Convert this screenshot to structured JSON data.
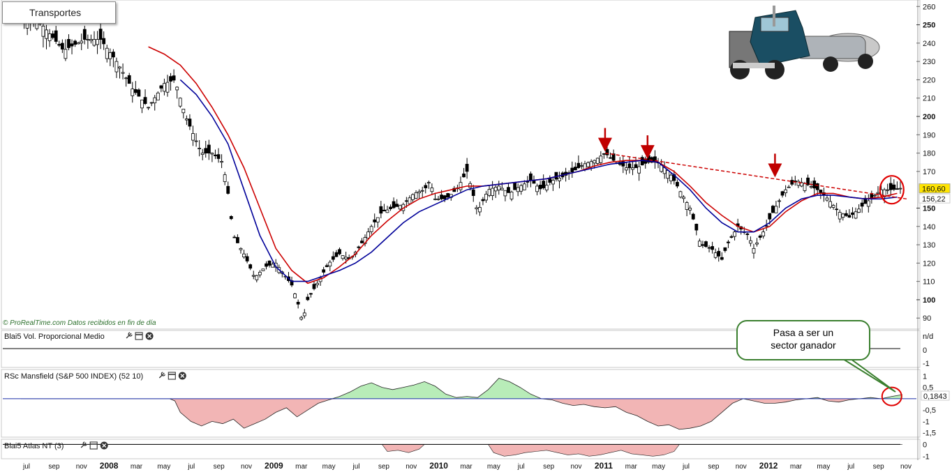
{
  "chart_data": {
    "type": "line",
    "title": "Transportes",
    "watermark": "© ProRealTime.com  Datos recibidos en fin de día",
    "ylim": [
      84,
      262
    ],
    "yticks_minor": [
      90,
      110,
      120,
      130,
      140,
      170,
      180,
      190,
      210,
      220,
      230,
      240,
      260
    ],
    "yticks_major": [
      100,
      150,
      200,
      250
    ],
    "x_labels": [
      {
        "label": "jul",
        "year": false
      },
      {
        "label": "sep",
        "year": false
      },
      {
        "label": "nov",
        "year": false
      },
      {
        "label": "2008",
        "year": true
      },
      {
        "label": "mar",
        "year": false
      },
      {
        "label": "may",
        "year": false
      },
      {
        "label": "jul",
        "year": false
      },
      {
        "label": "sep",
        "year": false
      },
      {
        "label": "nov",
        "year": false
      },
      {
        "label": "2009",
        "year": true
      },
      {
        "label": "mar",
        "year": false
      },
      {
        "label": "may",
        "year": false
      },
      {
        "label": "jul",
        "year": false
      },
      {
        "label": "sep",
        "year": false
      },
      {
        "label": "nov",
        "year": false
      },
      {
        "label": "2010",
        "year": true
      },
      {
        "label": "mar",
        "year": false
      },
      {
        "label": "may",
        "year": false
      },
      {
        "label": "jul",
        "year": false
      },
      {
        "label": "sep",
        "year": false
      },
      {
        "label": "nov",
        "year": false
      },
      {
        "label": "2011",
        "year": true
      },
      {
        "label": "mar",
        "year": false
      },
      {
        "label": "may",
        "year": false
      },
      {
        "label": "jul",
        "year": false
      },
      {
        "label": "sep",
        "year": false
      },
      {
        "label": "nov",
        "year": false
      },
      {
        "label": "2012",
        "year": true
      },
      {
        "label": "mar",
        "year": false
      },
      {
        "label": "may",
        "year": false
      },
      {
        "label": "jul",
        "year": false
      },
      {
        "label": "sep",
        "year": false
      },
      {
        "label": "nov",
        "year": false
      }
    ],
    "price_path": [
      [
        0,
        255
      ],
      [
        4,
        250
      ],
      [
        8,
        236
      ],
      [
        12,
        242
      ],
      [
        15,
        242
      ],
      [
        18,
        230
      ],
      [
        21,
        215
      ],
      [
        24,
        205
      ],
      [
        27,
        218
      ],
      [
        29,
        220
      ],
      [
        31,
        200
      ],
      [
        34,
        180
      ],
      [
        36,
        180
      ],
      [
        38,
        175
      ],
      [
        39,
        158
      ],
      [
        40,
        135
      ],
      [
        42,
        125
      ],
      [
        44,
        112
      ],
      [
        46,
        118
      ],
      [
        48,
        120
      ],
      [
        50,
        112
      ],
      [
        51,
        108
      ],
      [
        52,
        100
      ],
      [
        53,
        88
      ],
      [
        54,
        100
      ],
      [
        56,
        110
      ],
      [
        58,
        120
      ],
      [
        60,
        125
      ],
      [
        62,
        122
      ],
      [
        64,
        130
      ],
      [
        66,
        140
      ],
      [
        68,
        148
      ],
      [
        70,
        150
      ],
      [
        72,
        152
      ],
      [
        74,
        158
      ],
      [
        76,
        160
      ],
      [
        77,
        165
      ],
      [
        78,
        155
      ],
      [
        80,
        155
      ],
      [
        82,
        160
      ],
      [
        84,
        170
      ],
      [
        86,
        148
      ],
      [
        88,
        160
      ],
      [
        90,
        162
      ],
      [
        92,
        158
      ],
      [
        94,
        162
      ],
      [
        96,
        165
      ],
      [
        98,
        160
      ],
      [
        100,
        165
      ],
      [
        102,
        167
      ],
      [
        104,
        170
      ],
      [
        106,
        174
      ],
      [
        108,
        176
      ],
      [
        110,
        180
      ],
      [
        112,
        175
      ],
      [
        114,
        172
      ],
      [
        116,
        172
      ],
      [
        118,
        175
      ],
      [
        120,
        175
      ],
      [
        122,
        170
      ],
      [
        124,
        160
      ],
      [
        126,
        150
      ],
      [
        127,
        140
      ],
      [
        128,
        130
      ],
      [
        130,
        128
      ],
      [
        132,
        122
      ],
      [
        133,
        130
      ],
      [
        135,
        140
      ],
      [
        137,
        135
      ],
      [
        138,
        128
      ],
      [
        140,
        138
      ],
      [
        142,
        150
      ],
      [
        144,
        160
      ],
      [
        146,
        165
      ],
      [
        148,
        163
      ],
      [
        150,
        160
      ],
      [
        152,
        155
      ],
      [
        154,
        148
      ],
      [
        156,
        145
      ],
      [
        158,
        150
      ],
      [
        160,
        155
      ],
      [
        162,
        160
      ],
      [
        164,
        160
      ],
      [
        166,
        161
      ]
    ],
    "series": [
      {
        "name": "",
        "color": "#cc0000",
        "points": [
          [
            24,
            238
          ],
          [
            27,
            234
          ],
          [
            30,
            228
          ],
          [
            33,
            218
          ],
          [
            36,
            205
          ],
          [
            39,
            190
          ],
          [
            42,
            172
          ],
          [
            45,
            150
          ],
          [
            48,
            128
          ],
          [
            51,
            116
          ],
          [
            54,
            109
          ],
          [
            57,
            112
          ],
          [
            60,
            118
          ],
          [
            63,
            125
          ],
          [
            66,
            135
          ],
          [
            69,
            143
          ],
          [
            72,
            150
          ],
          [
            75,
            155
          ],
          [
            78,
            158
          ],
          [
            81,
            160
          ],
          [
            84,
            162
          ],
          [
            87,
            162
          ],
          [
            90,
            163
          ],
          [
            93,
            164
          ],
          [
            96,
            165
          ],
          [
            99,
            166
          ],
          [
            102,
            168
          ],
          [
            105,
            170
          ],
          [
            108,
            173
          ],
          [
            111,
            175
          ],
          [
            114,
            176
          ],
          [
            117,
            176
          ],
          [
            120,
            175
          ],
          [
            123,
            170
          ],
          [
            126,
            162
          ],
          [
            129,
            153
          ],
          [
            132,
            146
          ],
          [
            135,
            140
          ],
          [
            138,
            137
          ],
          [
            141,
            140
          ],
          [
            144,
            148
          ],
          [
            147,
            154
          ],
          [
            150,
            158
          ],
          [
            153,
            158
          ],
          [
            156,
            156
          ],
          [
            159,
            155
          ],
          [
            162,
            156
          ],
          [
            165,
            158
          ]
        ]
      },
      {
        "name": "",
        "color": "#000099",
        "points": [
          [
            30,
            220
          ],
          [
            33,
            212
          ],
          [
            36,
            200
          ],
          [
            39,
            185
          ],
          [
            42,
            160
          ],
          [
            45,
            135
          ],
          [
            48,
            118
          ],
          [
            51,
            110
          ],
          [
            54,
            110
          ],
          [
            57,
            113
          ],
          [
            60,
            116
          ],
          [
            63,
            120
          ],
          [
            66,
            126
          ],
          [
            69,
            134
          ],
          [
            72,
            142
          ],
          [
            75,
            148
          ],
          [
            78,
            152
          ],
          [
            81,
            156
          ],
          [
            84,
            160
          ],
          [
            87,
            162
          ],
          [
            90,
            163
          ],
          [
            93,
            164
          ],
          [
            96,
            165
          ],
          [
            99,
            166
          ],
          [
            102,
            168
          ],
          [
            105,
            170
          ],
          [
            108,
            172
          ],
          [
            111,
            174
          ],
          [
            114,
            175
          ],
          [
            117,
            176
          ],
          [
            120,
            175
          ],
          [
            123,
            168
          ],
          [
            126,
            160
          ],
          [
            129,
            150
          ],
          [
            132,
            142
          ],
          [
            135,
            137
          ],
          [
            138,
            137
          ],
          [
            141,
            142
          ],
          [
            144,
            150
          ],
          [
            147,
            155
          ],
          [
            150,
            157
          ],
          [
            153,
            157
          ],
          [
            156,
            156
          ],
          [
            159,
            155
          ],
          [
            162,
            155
          ],
          [
            165,
            156
          ]
        ]
      }
    ],
    "trendline": {
      "from": [
        110,
        180
      ],
      "to": [
        166,
        155
      ],
      "color": "#cc0000"
    },
    "arrows": [
      {
        "x": 110,
        "y": 180
      },
      {
        "x": 118,
        "y": 176
      },
      {
        "x": 142,
        "y": 166
      }
    ],
    "price_labels": {
      "last": "160,60",
      "ma": "156,22"
    },
    "panels": {
      "volume": {
        "title": "Blai5 Vol. Proporcional Medio",
        "ticks": [
          "n/d",
          "0",
          "-1"
        ]
      },
      "mansfield": {
        "title": "RSc Mansfield (S&P 500 INDEX) (52 10)",
        "ticks": [
          "1",
          "0,5",
          "-0",
          "-0,5",
          "-1",
          "-1,5"
        ],
        "last_value": "0,1843",
        "values": [
          [
            0,
            0
          ],
          [
            28,
            0
          ],
          [
            29,
            -0.1
          ],
          [
            30,
            -0.6
          ],
          [
            32,
            -1.0
          ],
          [
            34,
            -1.2
          ],
          [
            36,
            -1.0
          ],
          [
            38,
            -1.1
          ],
          [
            40,
            -0.9
          ],
          [
            42,
            -1.3
          ],
          [
            44,
            -1.1
          ],
          [
            46,
            -0.9
          ],
          [
            48,
            -0.6
          ],
          [
            50,
            -0.4
          ],
          [
            52,
            -0.8
          ],
          [
            54,
            -0.5
          ],
          [
            56,
            -0.2
          ],
          [
            58,
            -0.05
          ],
          [
            60,
            0.1
          ],
          [
            62,
            0.3
          ],
          [
            64,
            0.55
          ],
          [
            66,
            0.7
          ],
          [
            68,
            0.5
          ],
          [
            70,
            0.4
          ],
          [
            72,
            0.5
          ],
          [
            74,
            0.6
          ],
          [
            76,
            0.75
          ],
          [
            78,
            0.55
          ],
          [
            80,
            0.2
          ],
          [
            82,
            0.05
          ],
          [
            84,
            0.1
          ],
          [
            86,
            0.05
          ],
          [
            88,
            0.4
          ],
          [
            90,
            0.9
          ],
          [
            92,
            0.75
          ],
          [
            94,
            0.5
          ],
          [
            96,
            0.2
          ],
          [
            98,
            0.0
          ],
          [
            100,
            -0.05
          ],
          [
            102,
            -0.2
          ],
          [
            104,
            -0.3
          ],
          [
            106,
            -0.25
          ],
          [
            108,
            -0.35
          ],
          [
            110,
            -0.4
          ],
          [
            112,
            -0.35
          ],
          [
            114,
            -0.6
          ],
          [
            116,
            -0.75
          ],
          [
            118,
            -1.0
          ],
          [
            120,
            -1.2
          ],
          [
            122,
            -1.15
          ],
          [
            124,
            -1.35
          ],
          [
            126,
            -1.3
          ],
          [
            128,
            -1.2
          ],
          [
            130,
            -1.0
          ],
          [
            132,
            -0.6
          ],
          [
            134,
            -0.2
          ],
          [
            136,
            0.0
          ],
          [
            138,
            -0.1
          ],
          [
            140,
            -0.2
          ],
          [
            142,
            -0.2
          ],
          [
            144,
            -0.15
          ],
          [
            146,
            -0.05
          ],
          [
            148,
            0.0
          ],
          [
            150,
            0.05
          ],
          [
            152,
            -0.1
          ],
          [
            154,
            -0.15
          ],
          [
            156,
            -0.05
          ],
          [
            158,
            0.0
          ],
          [
            160,
            0.05
          ],
          [
            162,
            0.0
          ],
          [
            164,
            0.1
          ],
          [
            166,
            0.18
          ]
        ]
      },
      "atlas": {
        "title": "Blai5 Atlas NT (3)",
        "ticks": [
          "0",
          "-1"
        ],
        "values": [
          [
            0,
            0
          ],
          [
            68,
            0
          ],
          [
            69,
            -0.6
          ],
          [
            71,
            -0.5
          ],
          [
            73,
            -0.7
          ],
          [
            75,
            -0.4
          ],
          [
            76,
            0
          ],
          [
            88,
            0
          ],
          [
            89,
            -0.7
          ],
          [
            91,
            -1.0
          ],
          [
            93,
            -0.9
          ],
          [
            95,
            -0.7
          ],
          [
            97,
            -0.6
          ],
          [
            99,
            -0.5
          ],
          [
            101,
            -0.7
          ],
          [
            103,
            -0.9
          ],
          [
            105,
            -0.8
          ],
          [
            107,
            -1.0
          ],
          [
            109,
            -0.9
          ],
          [
            111,
            -0.7
          ],
          [
            113,
            -0.5
          ],
          [
            115,
            -0.8
          ],
          [
            117,
            -0.9
          ],
          [
            119,
            -1.0
          ],
          [
            121,
            -0.9
          ],
          [
            123,
            -0.6
          ],
          [
            124,
            0
          ],
          [
            166,
            0
          ]
        ]
      }
    },
    "callout": {
      "text": "Pasa a ser un sector ganador"
    }
  }
}
